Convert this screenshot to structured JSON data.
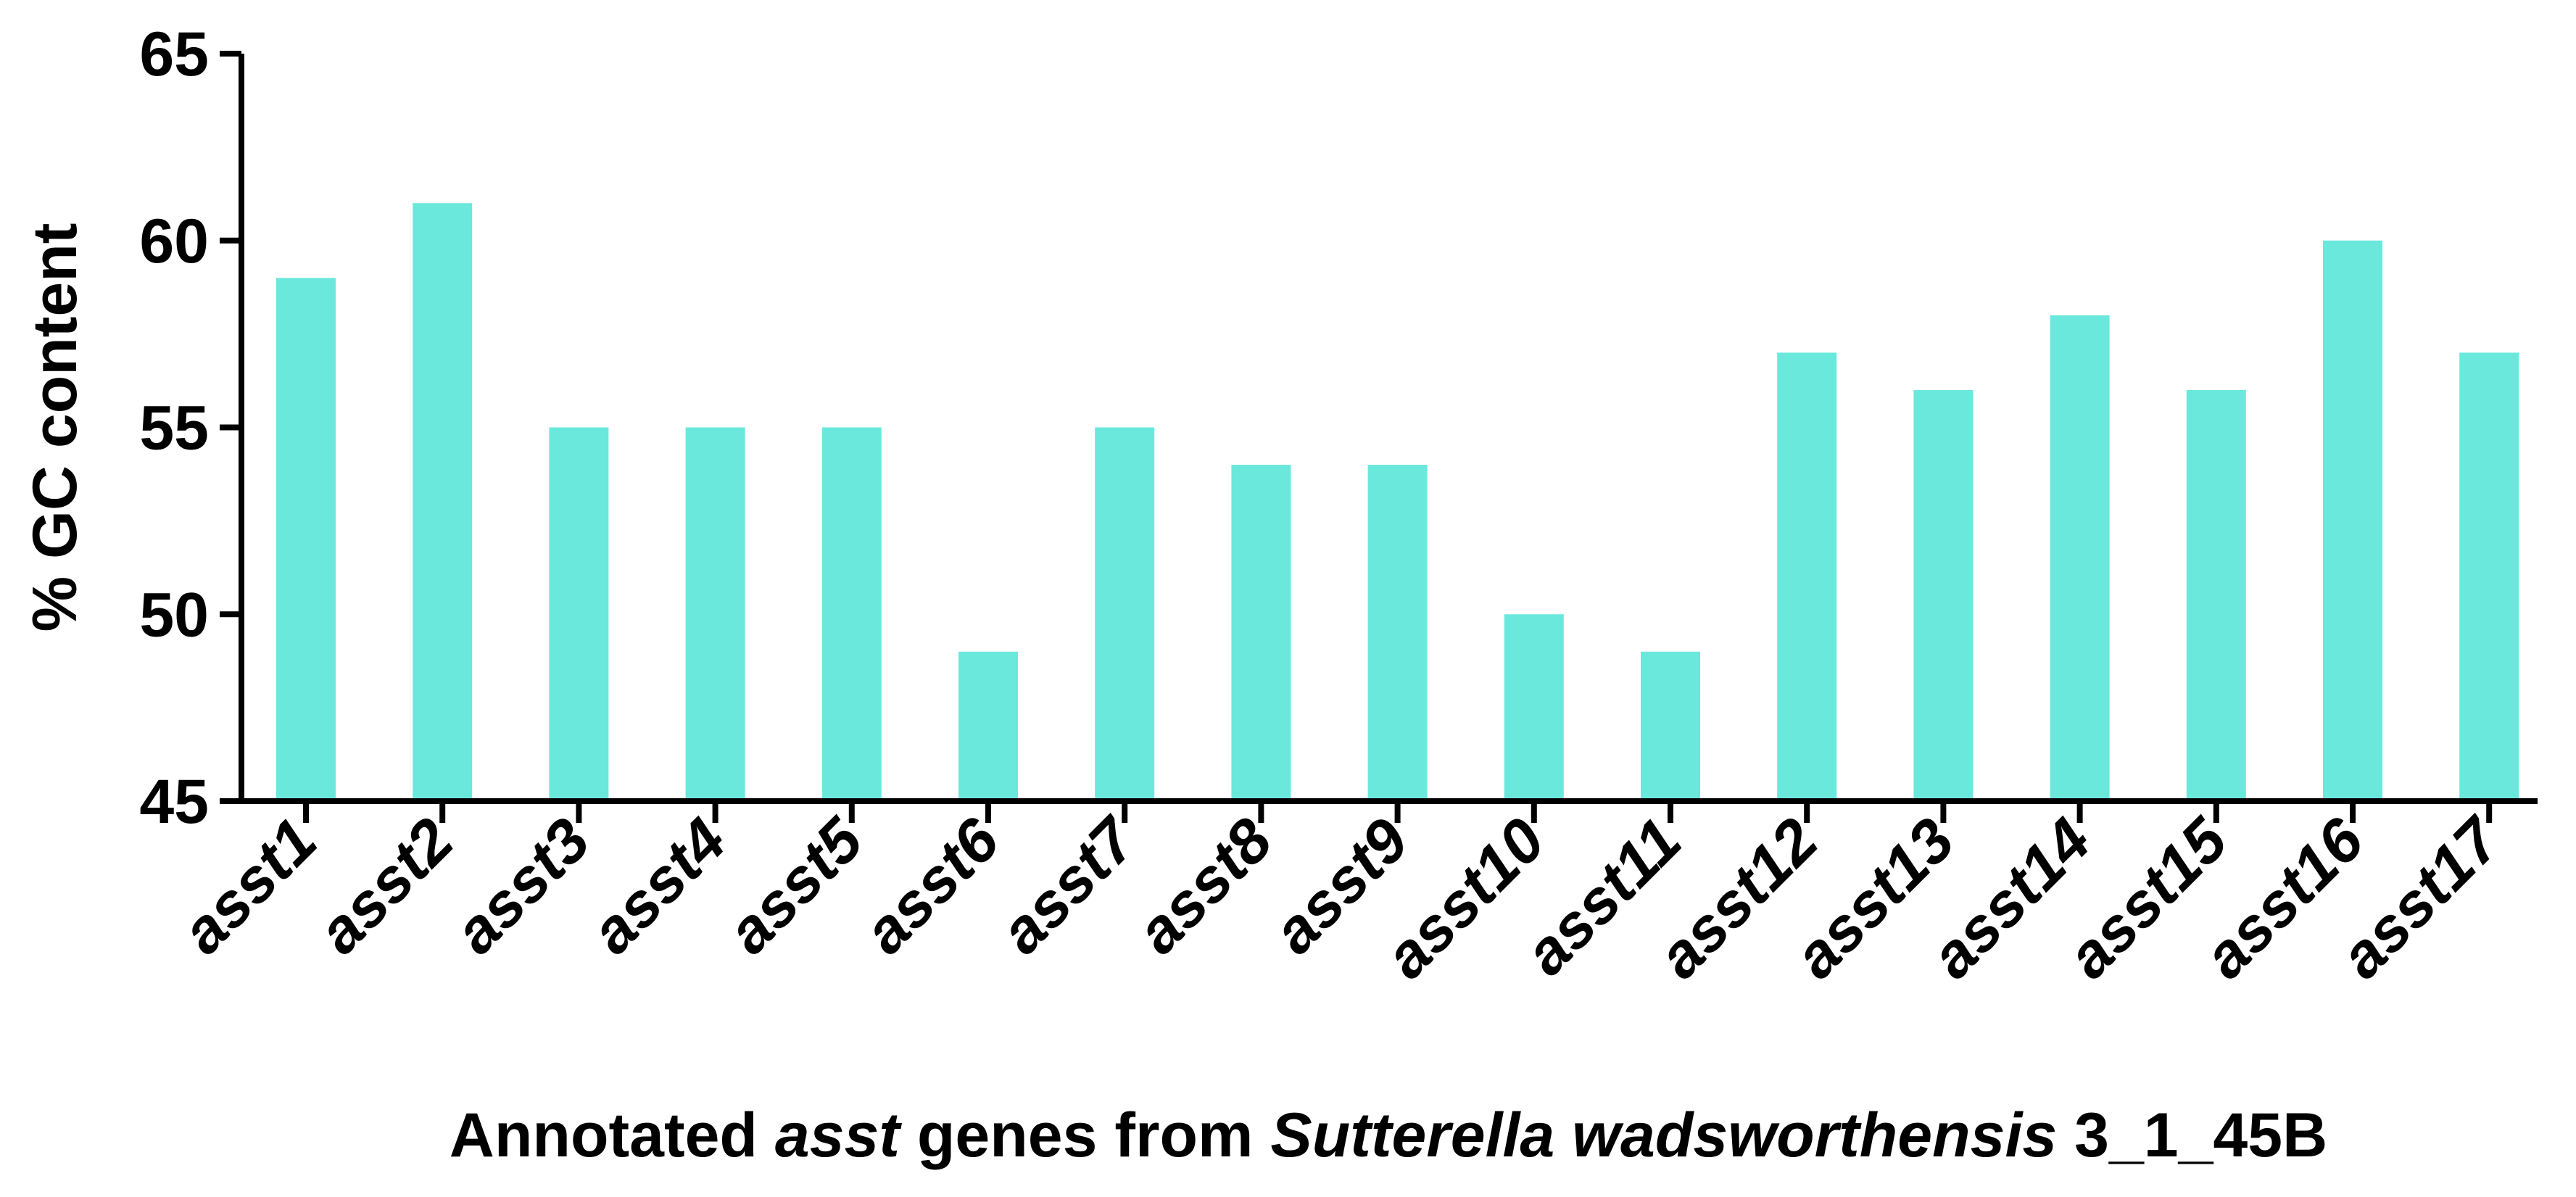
{
  "chart_data": {
    "type": "bar",
    "title": "",
    "categories": [
      "asst1",
      "asst2",
      "asst3",
      "asst4",
      "asst5",
      "asst6",
      "asst7",
      "asst8",
      "asst9",
      "asst10",
      "asst11",
      "asst12",
      "asst13",
      "asst14",
      "asst15",
      "asst16",
      "asst17"
    ],
    "values": [
      59,
      61,
      55,
      55,
      55,
      49,
      55,
      54,
      54,
      50,
      49,
      57,
      56,
      58,
      56,
      60,
      57
    ],
    "ylabel": "% GC content",
    "xlabel": {
      "part1": "Annotated ",
      "part2_italic": "asst",
      "part3": " genes from ",
      "part4_italic": "Sutterella wadsworthensis",
      "part5": " 3_1_45B"
    },
    "ylim": [
      45,
      65
    ],
    "yticks": [
      45,
      50,
      55,
      60,
      65
    ],
    "grid": false,
    "bar_color": "#6BE8DC"
  }
}
